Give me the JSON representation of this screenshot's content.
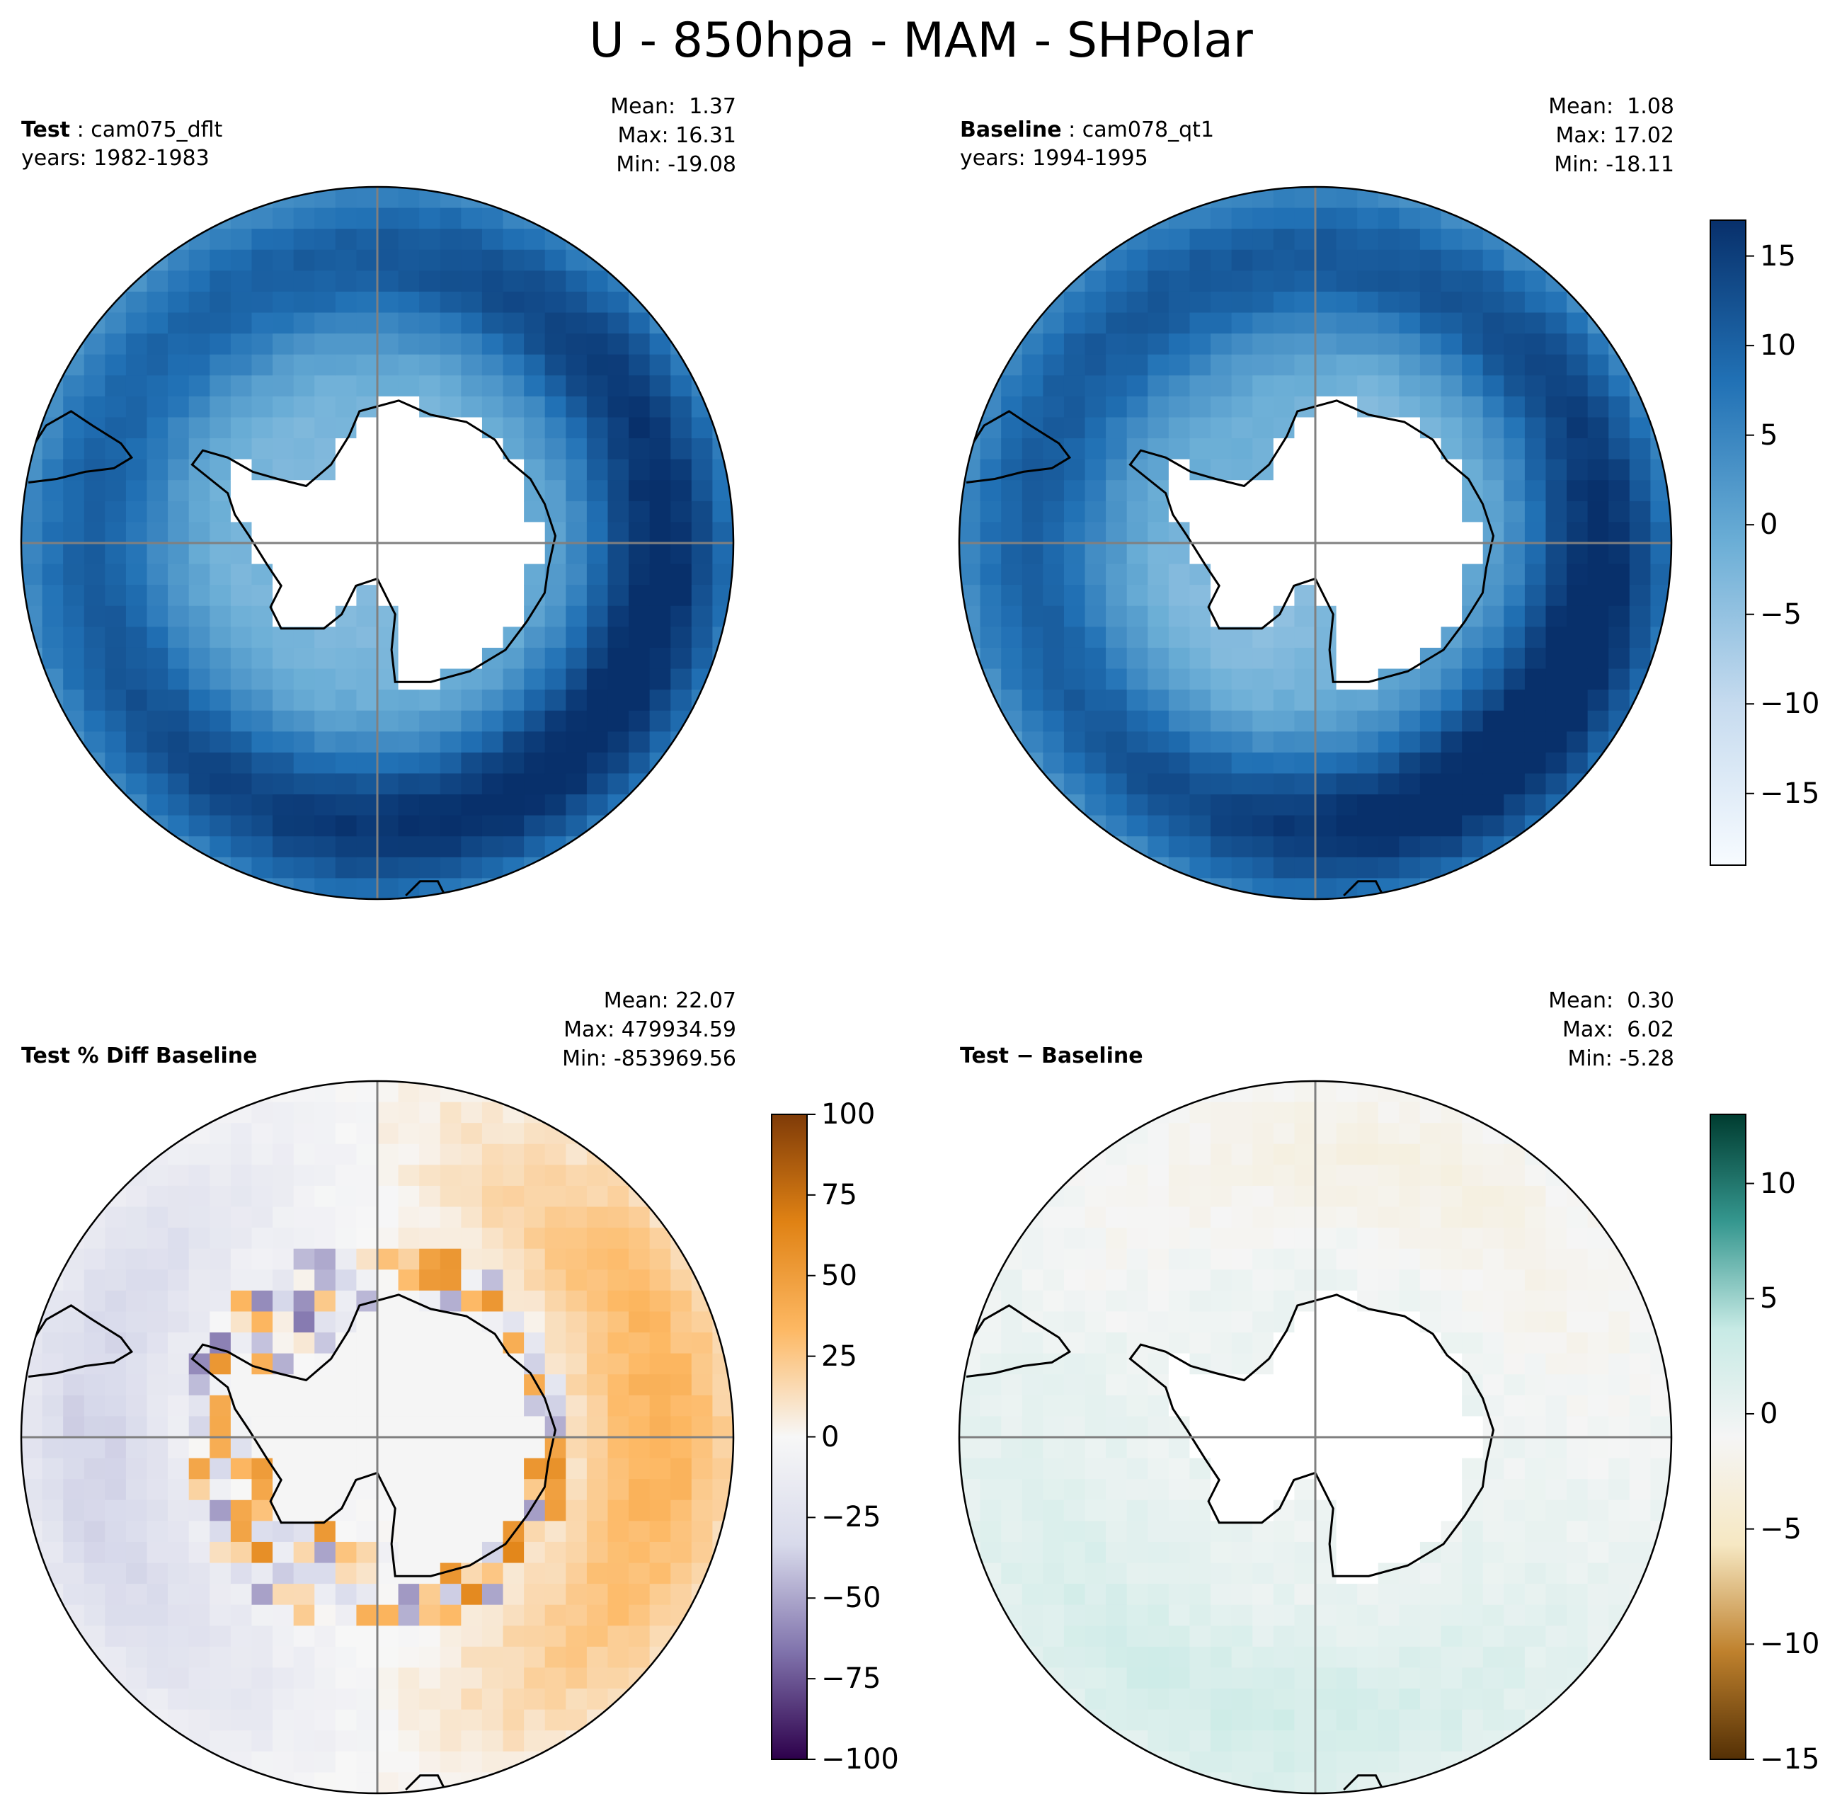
{
  "figure": {
    "title": "U - 850hpa - MAM - SHPolar"
  },
  "panels": [
    {
      "id": "test",
      "label_bold": "Test",
      "label_sep": " : ",
      "label_rest": "cam075_dflt",
      "years": "years: 1982-1983",
      "stats": {
        "mean": "Mean:  1.37",
        "max": "Max: 16.31",
        "min": "Min: -19.08"
      },
      "colormap": "Blues",
      "field_range": [
        -19.08,
        16.31
      ]
    },
    {
      "id": "baseline",
      "label_bold": "Baseline",
      "label_sep": " : ",
      "label_rest": "cam078_qt1",
      "years": "years: 1994-1995",
      "stats": {
        "mean": "Mean:  1.08",
        "max": "Max: 17.02",
        "min": "Min: -18.11"
      },
      "colormap": "Blues",
      "field_range": [
        -18.11,
        17.02
      ]
    },
    {
      "id": "pctdiff",
      "label_bold": "Test % Diff Baseline",
      "label_sep": "",
      "label_rest": "",
      "years": "",
      "stats": {
        "mean": "Mean: 22.07",
        "max": "Max: 479934.59",
        "min": "Min: -853969.56"
      },
      "colormap": "PuOr_r",
      "field_range": [
        -100,
        100
      ]
    },
    {
      "id": "diff",
      "label_bold": "Test − Baseline",
      "label_sep": "",
      "label_rest": "",
      "years": "",
      "stats": {
        "mean": "Mean:  0.30",
        "max": "Max:  6.02",
        "min": "Min: -5.28"
      },
      "colormap": "BrBG",
      "field_range": [
        -15,
        13
      ]
    }
  ],
  "colorbars": [
    {
      "id": "cb-main",
      "vmin": -19,
      "vmax": 17,
      "ticks": [
        "15",
        "10",
        "5",
        "0",
        "−5",
        "−10",
        "−15"
      ],
      "tick_values": [
        15,
        10,
        5,
        0,
        -5,
        -10,
        -15
      ],
      "colors": [
        "#f7fbff",
        "#c6dbef",
        "#6baed6",
        "#2171b5",
        "#08306b"
      ]
    },
    {
      "id": "cb-pct",
      "vmin": -100,
      "vmax": 100,
      "ticks": [
        "100",
        "75",
        "50",
        "25",
        "0",
        "−25",
        "−50",
        "−75",
        "−100"
      ],
      "tick_values": [
        100,
        75,
        50,
        25,
        0,
        -25,
        -50,
        -75,
        -100
      ],
      "colors": [
        "#2d004b",
        "#8073ac",
        "#d8daeb",
        "#f7f7f7",
        "#fdb863",
        "#e08214",
        "#7f3b08"
      ]
    },
    {
      "id": "cb-diff",
      "vmin": -15,
      "vmax": 13,
      "ticks": [
        "10",
        "5",
        "0",
        "−5",
        "−10",
        "−15"
      ],
      "tick_values": [
        10,
        5,
        0,
        -5,
        -10,
        -15
      ],
      "colors": [
        "#543005",
        "#bf812d",
        "#f6e8c3",
        "#f5f5f5",
        "#c7eae5",
        "#35978f",
        "#003c30"
      ]
    }
  ]
}
